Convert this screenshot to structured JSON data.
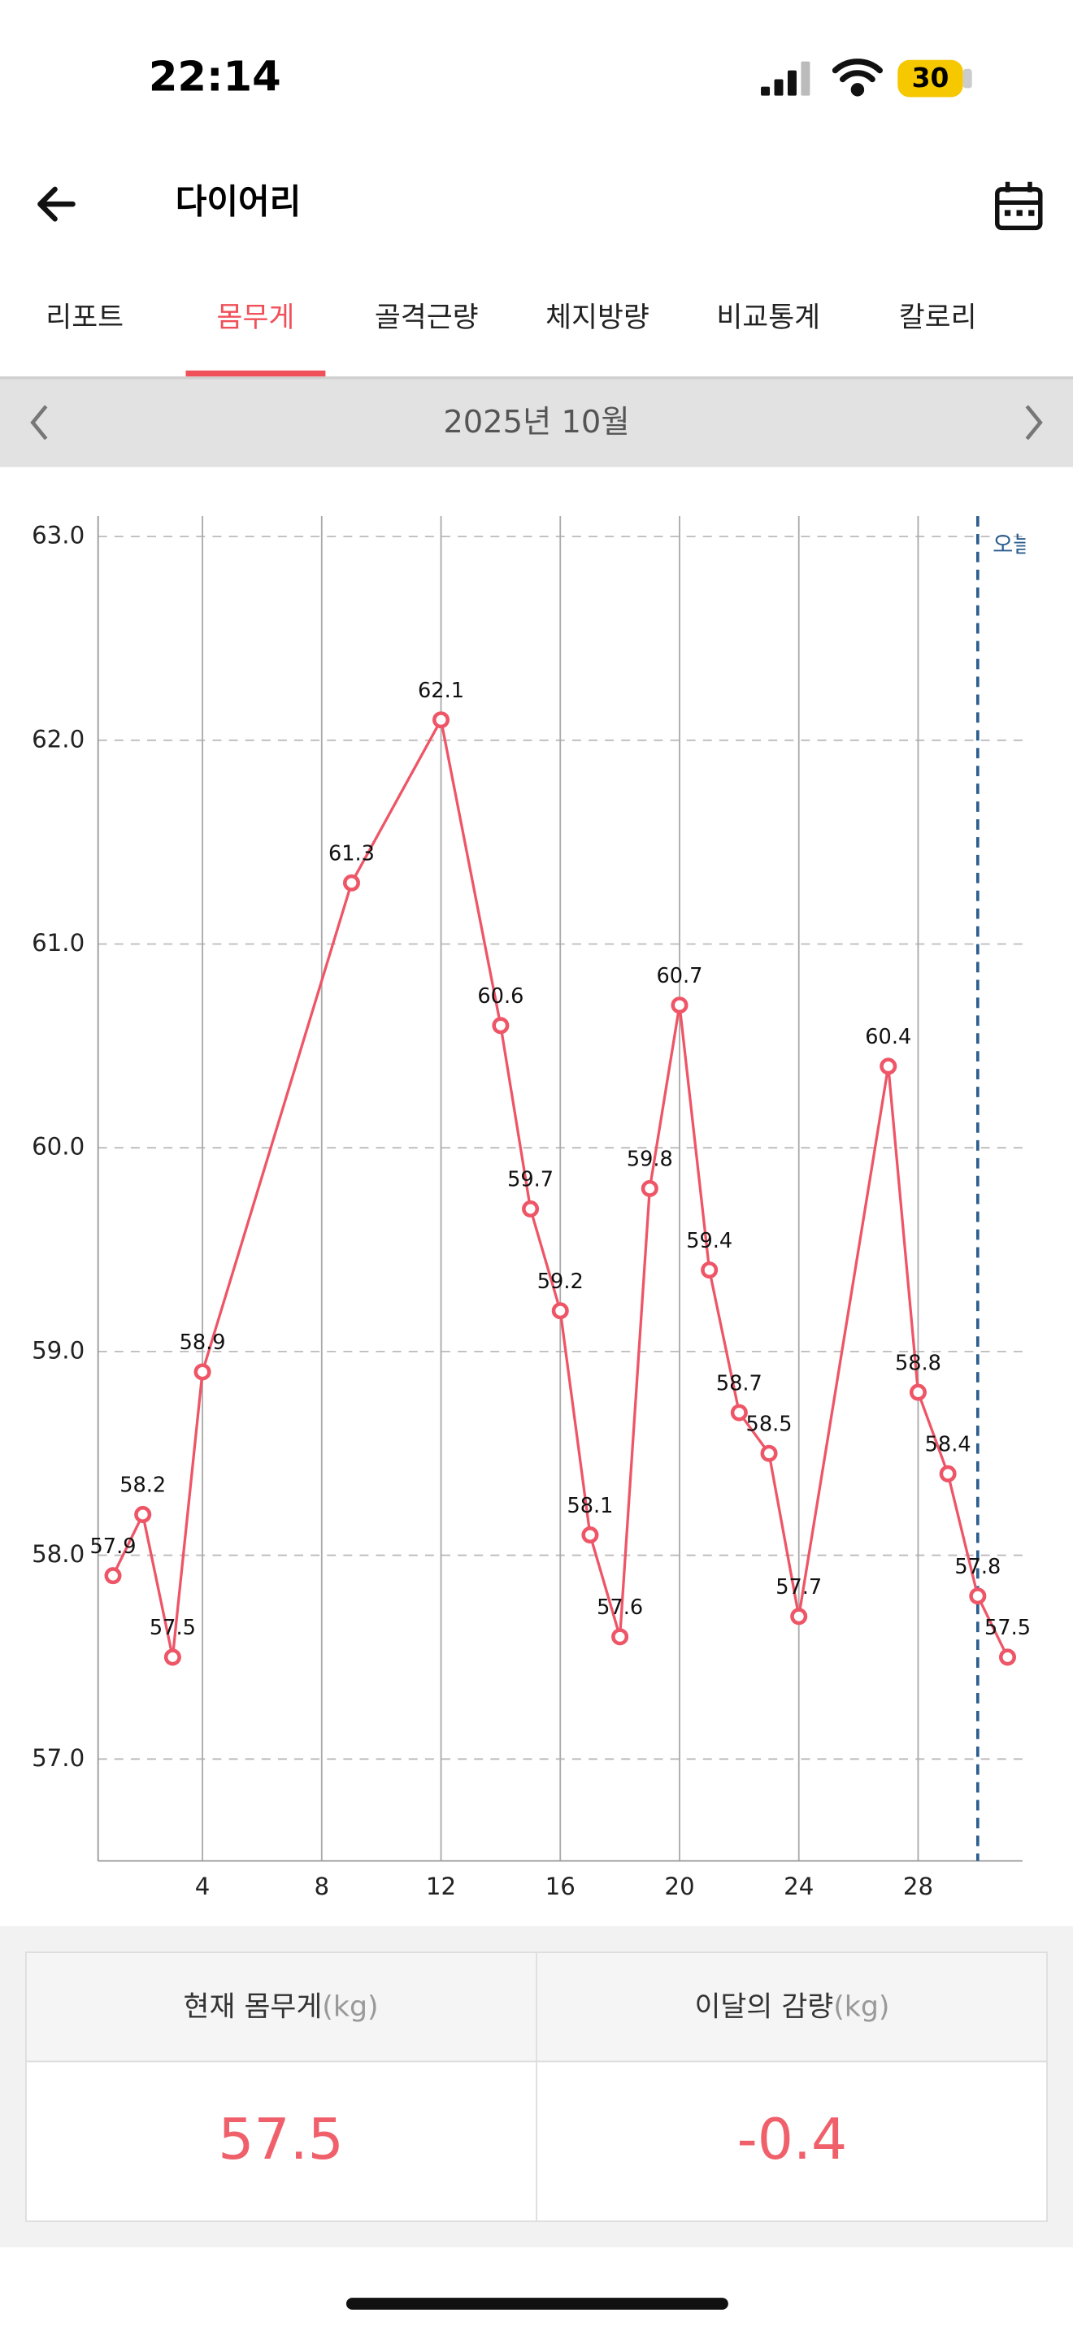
{
  "status_bar": {
    "time": "22:14",
    "battery": "30"
  },
  "header": {
    "title": "다이어리"
  },
  "tabs": [
    "리포트",
    "몸무게",
    "골격근량",
    "체지방량",
    "비교통계",
    "칼로리"
  ],
  "month": "2025년 10월",
  "chart_data": {
    "type": "line",
    "color": "#ee5566",
    "x": [
      1,
      2,
      3,
      4,
      9,
      12,
      14,
      15,
      16,
      17,
      18,
      19,
      20,
      21,
      22,
      23,
      24,
      27,
      28,
      29,
      30,
      31
    ],
    "values": [
      57.9,
      58.2,
      57.5,
      58.9,
      61.3,
      62.1,
      60.6,
      59.7,
      59.2,
      58.1,
      57.6,
      59.8,
      60.7,
      59.4,
      58.7,
      58.5,
      57.7,
      60.4,
      58.8,
      58.4,
      57.8,
      57.5
    ],
    "xlim": [
      0.5,
      31.5
    ],
    "xticks": [
      4,
      8,
      12,
      16,
      20,
      24,
      28
    ],
    "ylim": [
      56.5,
      63.1
    ],
    "yticks": [
      {
        "value": 57,
        "label": "57.0"
      },
      {
        "value": 58,
        "label": "58.0"
      },
      {
        "value": 59,
        "label": "59.0"
      },
      {
        "value": 60,
        "label": "60.0"
      },
      {
        "value": 61,
        "label": "61.0"
      },
      {
        "value": 62,
        "label": "62.0"
      },
      {
        "value": 63,
        "label": "63.0"
      }
    ],
    "grid": true,
    "today": {
      "value": 30,
      "label": "오늘"
    }
  },
  "summary": {
    "headers": [
      {
        "label": "현재 몸무게",
        "unit": "(kg)"
      },
      {
        "label": "이달의 감량",
        "unit": "(kg)"
      }
    ],
    "values": [
      "57.5",
      "-0.4"
    ]
  }
}
